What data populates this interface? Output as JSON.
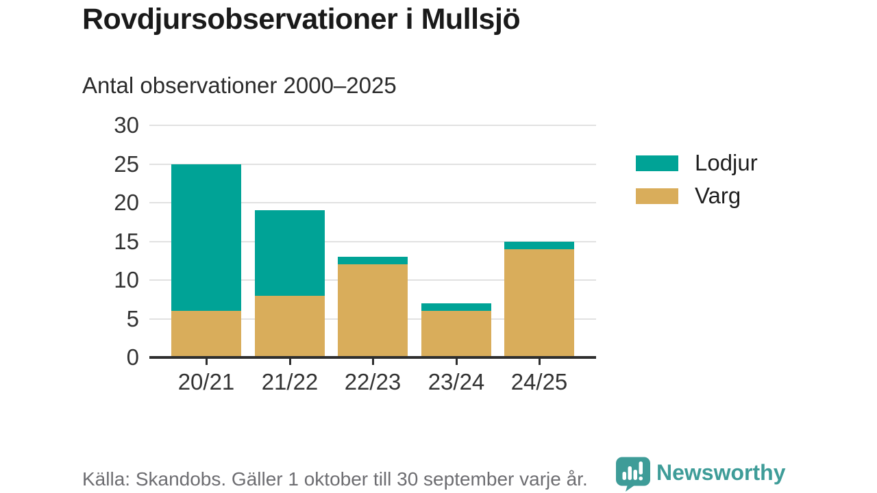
{
  "title": "Rovdjursobservationer i Mullsjö",
  "subtitle": "Antal observationer 2000–2025",
  "footer": {
    "source": "Källa: Skandobs. Gäller 1 oktober till 30 september varje år."
  },
  "branding": {
    "name": "Newsworthy",
    "icon": "newsworthy-speech-bubble-bar-chart-icon",
    "color": "#3e9c98"
  },
  "colors": {
    "lodjur": "#00a396",
    "varg": "#d9ad5b",
    "gridline": "#e1e1e1",
    "axis_line": "#2e2e2e",
    "tick_label": "#333333",
    "footer_text": "#6d6d71",
    "background": "#ffffff"
  },
  "chart_data": {
    "type": "bar",
    "stacked": true,
    "title": "Rovdjursobservationer i Mullsjö",
    "subtitle": "Antal observationer 2000–2025",
    "categories": [
      "20/21",
      "21/22",
      "22/23",
      "23/24",
      "24/25"
    ],
    "series": [
      {
        "name": "Varg",
        "color": "#d9ad5b",
        "values": [
          6,
          8,
          12,
          6,
          14
        ]
      },
      {
        "name": "Lodjur",
        "color": "#00a396",
        "values": [
          19,
          11,
          1,
          1,
          1
        ]
      }
    ],
    "totals": [
      25,
      19,
      13,
      7,
      15
    ],
    "xlabel": "",
    "ylabel": "",
    "ylim": [
      0,
      30
    ],
    "y_ticks": [
      0,
      5,
      10,
      15,
      20,
      25,
      30
    ],
    "grid": "horizontal",
    "legend_position": "right",
    "legend_items": [
      {
        "label": "Lodjur",
        "color": "#00a396"
      },
      {
        "label": "Varg",
        "color": "#d9ad5b"
      }
    ]
  }
}
